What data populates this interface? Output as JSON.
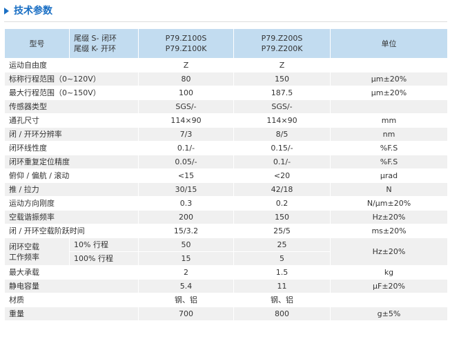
{
  "section_title": "技术参数",
  "header": {
    "model_label": "型号",
    "suffix_line1": "尾缀 S- 闭环",
    "suffix_line2": "尾缀 K- 开环",
    "col1_line1": "P79.Z100S",
    "col1_line2": "P79.Z100K",
    "col2_line1": "P79.Z200S",
    "col2_line2": "P79.Z200K",
    "unit_label": "单位"
  },
  "rows": [
    {
      "label": "运动自由度",
      "v1": "Z",
      "v2": "Z",
      "unit": ""
    },
    {
      "label": "标称行程范围（0~120V）",
      "v1": "80",
      "v2": "150",
      "unit": "μm±20%"
    },
    {
      "label": "最大行程范围（0~150V）",
      "v1": "100",
      "v2": "187.5",
      "unit": "μm±20%"
    },
    {
      "label": "传感器类型",
      "v1": "SGS/-",
      "v2": "SGS/-",
      "unit": ""
    },
    {
      "label": "通孔尺寸",
      "v1": "114×90",
      "v2": "114×90",
      "unit": "mm"
    },
    {
      "label": "闭 / 开环分辨率",
      "v1": "7/3",
      "v2": "8/5",
      "unit": "nm"
    },
    {
      "label": "闭环线性度",
      "v1": "0.1/-",
      "v2": "0.15/-",
      "unit": "%F.S"
    },
    {
      "label": "闭环重复定位精度",
      "v1": "0.05/-",
      "v2": "0.1/-",
      "unit": "%F.S"
    },
    {
      "label": "俯仰 / 偏航 / 滚动",
      "v1": "<15",
      "v2": "<20",
      "unit": "μrad"
    },
    {
      "label": "推 / 拉力",
      "v1": "30/15",
      "v2": "42/18",
      "unit": "N"
    },
    {
      "label": "运动方向刚度",
      "v1": "0.3",
      "v2": "0.2",
      "unit": "N/μm±20%"
    },
    {
      "label": "空载谐振频率",
      "v1": "200",
      "v2": "150",
      "unit": "Hz±20%"
    },
    {
      "label": "闭 / 开环空载阶跃时间",
      "v1": "15/3.2",
      "v2": "25/5",
      "unit": "ms±20%"
    }
  ],
  "load_freq": {
    "label_line1": "闭环空载",
    "label_line2": "工作频率",
    "sub1": {
      "label": "10% 行程",
      "v1": "50",
      "v2": "25"
    },
    "sub2": {
      "label": "100% 行程",
      "v1": "15",
      "v2": "5"
    },
    "unit": "Hz±20%"
  },
  "rows_after": [
    {
      "label": "最大承载",
      "v1": "2",
      "v2": "1.5",
      "unit": "kg"
    },
    {
      "label": "静电容量",
      "v1": "5.4",
      "v2": "11",
      "unit": "μF±20%"
    },
    {
      "label": "材质",
      "v1": "钢、铝",
      "v2": "钢、铝",
      "unit": ""
    },
    {
      "label": "重量",
      "v1": "700",
      "v2": "800",
      "unit": "g±5%"
    }
  ]
}
